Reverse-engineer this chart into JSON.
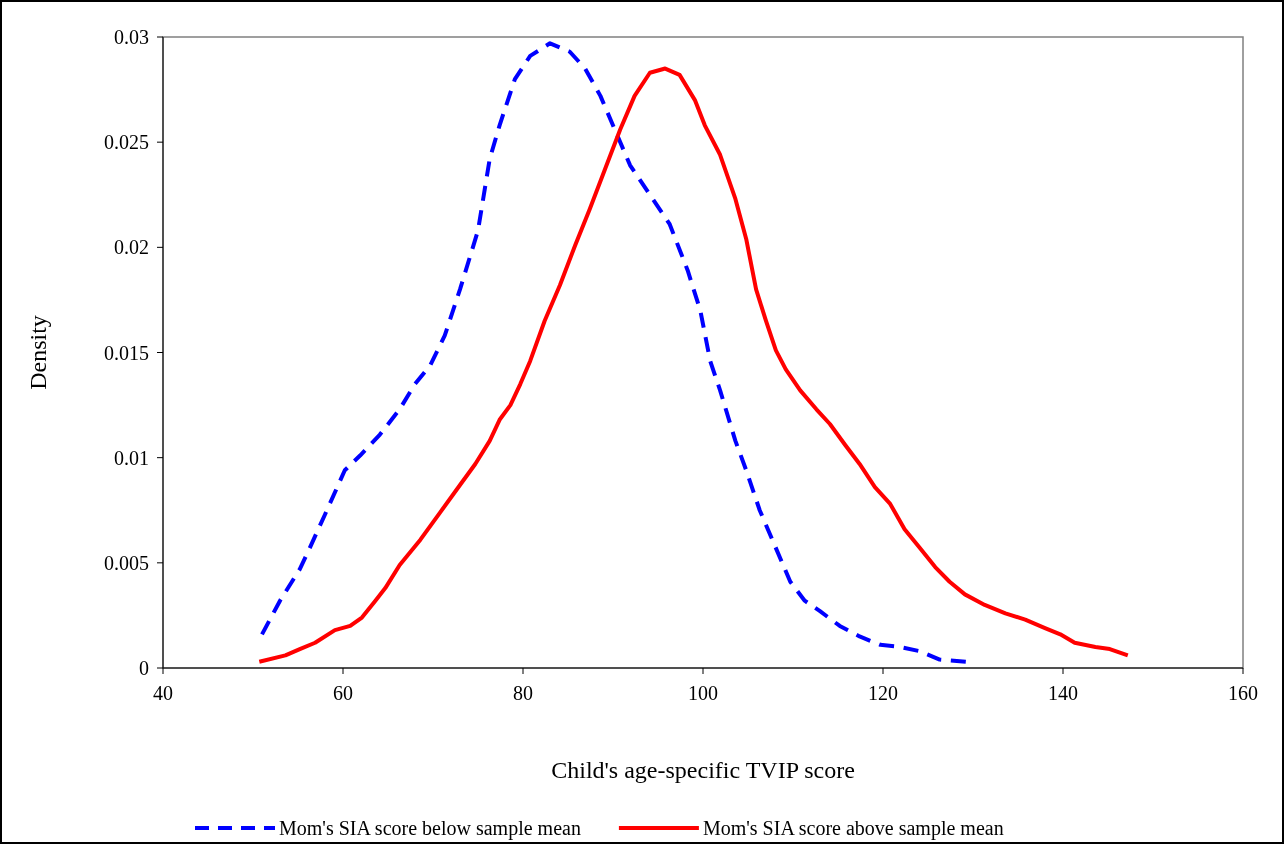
{
  "chart_data": {
    "type": "line",
    "xlabel": "Child's age-specific TVIP score",
    "ylabel": "Density",
    "xlim": [
      40,
      160
    ],
    "xticks": [
      40,
      60,
      80,
      100,
      120,
      140,
      160
    ],
    "ylim": [
      0,
      0.03
    ],
    "yticks": [
      0,
      0.005,
      0.01,
      0.015,
      0.02,
      0.025,
      0.03
    ],
    "legend": "bottom",
    "grid": false,
    "marker": "none",
    "series": [
      {
        "name": "Mom's SIA score below sample mean",
        "color": "#0000ff",
        "line_style": "dashed",
        "x": [
          51,
          53,
          55.2,
          56.3,
          58,
          60.2,
          61.9,
          64.1,
          66.3,
          68,
          69.7,
          71.3,
          73,
          75,
          76.3,
          77.4,
          79.1,
          80.8,
          83,
          85.2,
          86.9,
          88.6,
          90.2,
          91.9,
          94.1,
          96.3,
          98.3,
          99.7,
          100.8,
          101.9,
          103.6,
          104.8,
          106.3,
          108,
          109.7,
          111.3,
          113,
          115.2,
          117.4,
          119.7,
          121.9,
          124.1,
          126.3,
          129.2
        ],
        "values": [
          0.0016,
          0.0032,
          0.0047,
          0.0057,
          0.0073,
          0.0094,
          0.0101,
          0.0111,
          0.0123,
          0.0135,
          0.0144,
          0.0158,
          0.018,
          0.0208,
          0.0242,
          0.0258,
          0.028,
          0.0291,
          0.0297,
          0.0293,
          0.0285,
          0.0272,
          0.0256,
          0.0239,
          0.0225,
          0.0211,
          0.0189,
          0.017,
          0.0146,
          0.0132,
          0.0108,
          0.0094,
          0.0075,
          0.0058,
          0.0041,
          0.0032,
          0.0027,
          0.002,
          0.0015,
          0.0011,
          0.001,
          0.0008,
          0.0004,
          0.0003
        ]
      },
      {
        "name": "Mom's SIA score above sample mean",
        "color": "#ff0000",
        "line_style": "solid",
        "x": [
          50.7,
          53.6,
          55.2,
          56.9,
          59.1,
          60.8,
          62.1,
          63.6,
          64.7,
          66.3,
          68.6,
          70.8,
          73,
          74.7,
          76.3,
          77.4,
          78.6,
          79.7,
          80.8,
          82.4,
          84.1,
          85.8,
          87.4,
          89.1,
          90.8,
          92.4,
          94.1,
          95.8,
          97.4,
          99.1,
          100.2,
          101.9,
          103.6,
          104.8,
          105.9,
          107,
          108.1,
          109.2,
          110.8,
          112.6,
          114.1,
          115.8,
          117.4,
          119.1,
          120.8,
          122.4,
          124.1,
          125.8,
          127.4,
          129.1,
          131.3,
          133.6,
          135.8,
          138,
          139.7,
          141.3,
          143.6,
          145.2,
          147.2
        ],
        "values": [
          0.0003,
          0.0006,
          0.0009,
          0.0012,
          0.0018,
          0.002,
          0.0024,
          0.0032,
          0.0038,
          0.0049,
          0.0061,
          0.0074,
          0.0087,
          0.0097,
          0.0108,
          0.0118,
          0.0125,
          0.0135,
          0.0146,
          0.0165,
          0.0182,
          0.0201,
          0.0218,
          0.0237,
          0.0256,
          0.0272,
          0.0283,
          0.0285,
          0.0282,
          0.027,
          0.0258,
          0.0244,
          0.0223,
          0.0204,
          0.018,
          0.0165,
          0.0151,
          0.0142,
          0.0132,
          0.0123,
          0.0116,
          0.0106,
          0.0097,
          0.0086,
          0.0078,
          0.0066,
          0.0057,
          0.0048,
          0.0041,
          0.0035,
          0.003,
          0.0026,
          0.0023,
          0.0019,
          0.0016,
          0.0012,
          0.001,
          0.0009,
          0.0006
        ]
      }
    ]
  }
}
